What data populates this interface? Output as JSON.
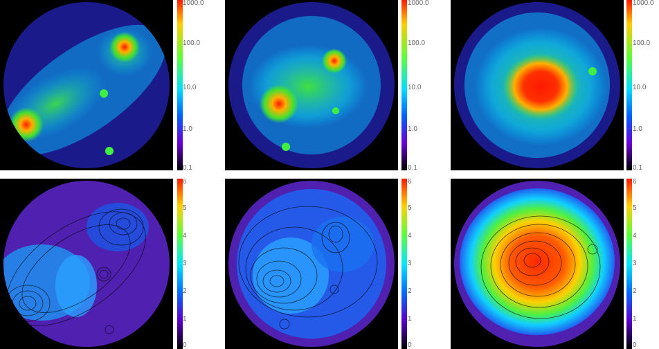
{
  "colorbars": {
    "top": {
      "labels": [
        "1000.0",
        "100.0",
        "10.0",
        "1.0",
        "0.1"
      ]
    },
    "bottom": {
      "labels": [
        "6",
        "5",
        "4",
        "3",
        "2",
        "1",
        "0"
      ]
    }
  },
  "panels": [
    {
      "row": "top",
      "col": 1
    },
    {
      "row": "top",
      "col": 2
    },
    {
      "row": "top",
      "col": 3
    },
    {
      "row": "bottom",
      "col": 1
    },
    {
      "row": "bottom",
      "col": 2
    },
    {
      "row": "bottom",
      "col": 3
    }
  ],
  "colors": {
    "hot": "#ff2a00",
    "warm": "#ffb000",
    "green": "#33e03a",
    "cyan": "#1ad0ff",
    "blue": "#1a5cff",
    "violet": "#3a1ab0"
  }
}
